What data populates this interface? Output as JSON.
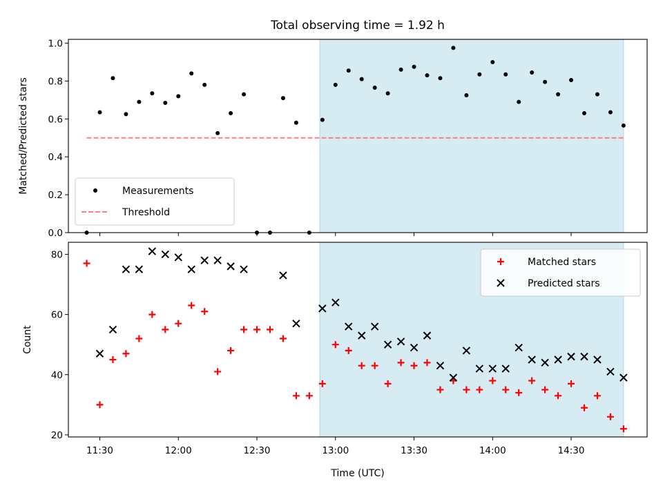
{
  "figure": {
    "title": "Total observing time = 1.92 h",
    "xlabel": "Time (UTC)"
  },
  "chart_data": [
    {
      "type": "scatter",
      "panel": "top",
      "ylabel": "Matched/Predicted stars",
      "xlim": [
        "11:18",
        "14:59"
      ],
      "ylim": [
        0,
        1.02
      ],
      "yticks": [
        "0.0",
        "0.2",
        "0.4",
        "0.6",
        "0.8",
        "1.0"
      ],
      "grid": false,
      "legend_position": "lower-left",
      "shaded_region": {
        "start": "12:54",
        "end": "14:50",
        "color": "#add8e6"
      },
      "series": [
        {
          "name": "Measurements",
          "marker": "dot",
          "color": "#000000",
          "points": [
            [
              "11:25",
              0.0
            ],
            [
              "11:30",
              0.635
            ],
            [
              "11:35",
              0.815
            ],
            [
              "11:40",
              0.625
            ],
            [
              "11:45",
              0.69
            ],
            [
              "11:50",
              0.735
            ],
            [
              "11:55",
              0.685
            ],
            [
              "12:00",
              0.72
            ],
            [
              "12:05",
              0.84
            ],
            [
              "12:10",
              0.78
            ],
            [
              "12:15",
              0.525
            ],
            [
              "12:20",
              0.63
            ],
            [
              "12:25",
              0.73
            ],
            [
              "12:30",
              0.0
            ],
            [
              "12:35",
              0.0
            ],
            [
              "12:40",
              0.71
            ],
            [
              "12:45",
              0.58
            ],
            [
              "12:50",
              0.0
            ],
            [
              "12:55",
              0.595
            ],
            [
              "13:00",
              0.78
            ],
            [
              "13:05",
              0.855
            ],
            [
              "13:10",
              0.81
            ],
            [
              "13:15",
              0.765
            ],
            [
              "13:20",
              0.735
            ],
            [
              "13:25",
              0.86
            ],
            [
              "13:30",
              0.875
            ],
            [
              "13:35",
              0.83
            ],
            [
              "13:40",
              0.815
            ],
            [
              "13:45",
              0.975
            ],
            [
              "13:50",
              0.725
            ],
            [
              "13:55",
              0.835
            ],
            [
              "14:00",
              0.9
            ],
            [
              "14:05",
              0.835
            ],
            [
              "14:10",
              0.69
            ],
            [
              "14:15",
              0.845
            ],
            [
              "14:20",
              0.795
            ],
            [
              "14:25",
              0.73
            ],
            [
              "14:30",
              0.805
            ],
            [
              "14:35",
              0.63
            ],
            [
              "14:40",
              0.73
            ],
            [
              "14:45",
              0.635
            ],
            [
              "14:50",
              0.565
            ]
          ]
        },
        {
          "name": "Threshold",
          "type": "line",
          "style": "dashed",
          "color": "#ff7f7f",
          "points": [
            [
              "11:25",
              0.5
            ],
            [
              "14:50",
              0.5
            ]
          ]
        }
      ]
    },
    {
      "type": "scatter",
      "panel": "bottom",
      "ylabel": "Count",
      "xlim": [
        "11:18",
        "14:59"
      ],
      "ylim": [
        19.3,
        84
      ],
      "yticks": [
        "20",
        "40",
        "60",
        "80"
      ],
      "xticks": [
        "11:30",
        "12:00",
        "12:30",
        "13:00",
        "13:30",
        "14:00",
        "14:30"
      ],
      "grid": false,
      "legend_position": "top-right",
      "shaded_region": {
        "start": "12:54",
        "end": "14:50",
        "color": "#add8e6"
      },
      "series": [
        {
          "name": "Matched stars",
          "marker": "plus",
          "color": "#ff0000",
          "points": [
            [
              "11:25",
              77
            ],
            [
              "11:30",
              30
            ],
            [
              "11:35",
              45
            ],
            [
              "11:40",
              47
            ],
            [
              "11:45",
              52
            ],
            [
              "11:50",
              60
            ],
            [
              "11:55",
              55
            ],
            [
              "12:00",
              57
            ],
            [
              "12:05",
              63
            ],
            [
              "12:10",
              61
            ],
            [
              "12:15",
              41
            ],
            [
              "12:20",
              48
            ],
            [
              "12:25",
              55
            ],
            [
              "12:30",
              55
            ],
            [
              "12:35",
              55
            ],
            [
              "12:40",
              52
            ],
            [
              "12:45",
              33
            ],
            [
              "12:50",
              33
            ],
            [
              "12:55",
              37
            ],
            [
              "13:00",
              50
            ],
            [
              "13:05",
              48
            ],
            [
              "13:10",
              43
            ],
            [
              "13:15",
              43
            ],
            [
              "13:20",
              37
            ],
            [
              "13:25",
              44
            ],
            [
              "13:30",
              43
            ],
            [
              "13:35",
              44
            ],
            [
              "13:40",
              35
            ],
            [
              "13:45",
              38
            ],
            [
              "13:50",
              35
            ],
            [
              "13:55",
              35
            ],
            [
              "14:00",
              38
            ],
            [
              "14:05",
              35
            ],
            [
              "14:10",
              34
            ],
            [
              "14:15",
              38
            ],
            [
              "14:20",
              35
            ],
            [
              "14:25",
              33
            ],
            [
              "14:30",
              37
            ],
            [
              "14:35",
              29
            ],
            [
              "14:40",
              33
            ],
            [
              "14:45",
              26
            ],
            [
              "14:50",
              22
            ]
          ]
        },
        {
          "name": "Predicted stars",
          "marker": "x",
          "color": "#000000",
          "points": [
            [
              "11:30",
              47
            ],
            [
              "11:35",
              55
            ],
            [
              "11:40",
              75
            ],
            [
              "11:45",
              75
            ],
            [
              "11:50",
              81
            ],
            [
              "11:55",
              80
            ],
            [
              "12:00",
              79
            ],
            [
              "12:05",
              75
            ],
            [
              "12:10",
              78
            ],
            [
              "12:15",
              78
            ],
            [
              "12:20",
              76
            ],
            [
              "12:25",
              75
            ],
            [
              "12:40",
              73
            ],
            [
              "12:45",
              57
            ],
            [
              "12:55",
              62
            ],
            [
              "13:00",
              64
            ],
            [
              "13:05",
              56
            ],
            [
              "13:10",
              53
            ],
            [
              "13:15",
              56
            ],
            [
              "13:20",
              50
            ],
            [
              "13:25",
              51
            ],
            [
              "13:30",
              49
            ],
            [
              "13:35",
              53
            ],
            [
              "13:40",
              43
            ],
            [
              "13:45",
              39
            ],
            [
              "13:50",
              48
            ],
            [
              "13:55",
              42
            ],
            [
              "14:00",
              42
            ],
            [
              "14:05",
              42
            ],
            [
              "14:10",
              49
            ],
            [
              "14:15",
              45
            ],
            [
              "14:20",
              44
            ],
            [
              "14:25",
              45
            ],
            [
              "14:30",
              46
            ],
            [
              "14:35",
              46
            ],
            [
              "14:40",
              45
            ],
            [
              "14:45",
              41
            ],
            [
              "14:50",
              39
            ]
          ]
        }
      ]
    }
  ]
}
